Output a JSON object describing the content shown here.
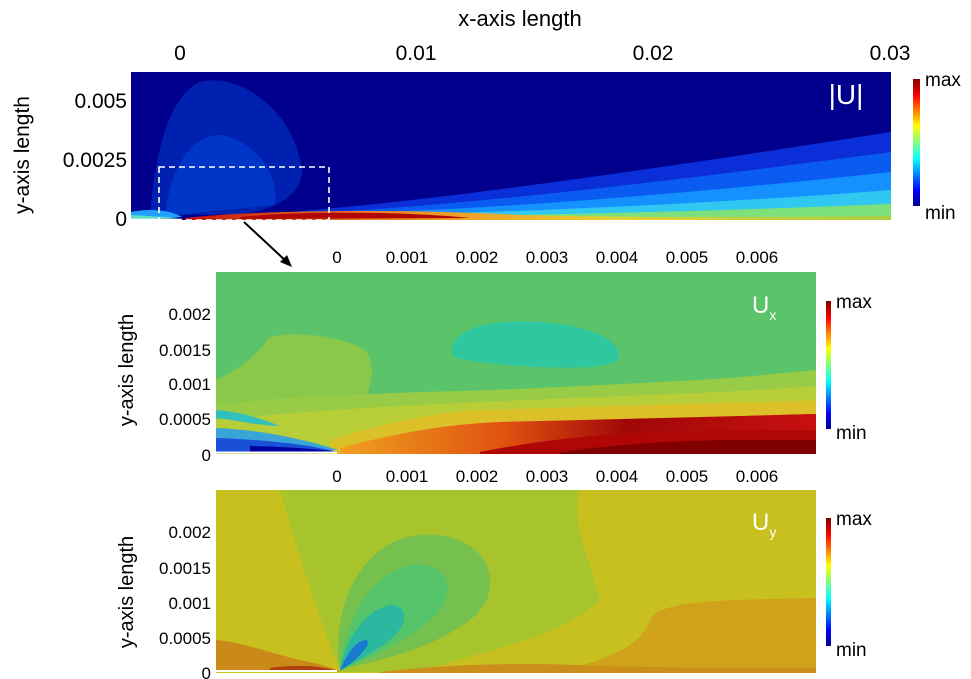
{
  "chart_data": [
    {
      "type": "heatmap",
      "field_label": "|U|",
      "xlabel": "x-axis length",
      "ylabel": "y-axis length",
      "xlim": [
        -0.002,
        0.03
      ],
      "ylim": [
        0,
        0.0062
      ],
      "x_ticks": [
        "0",
        "0.01",
        "0.02",
        "0.03"
      ],
      "x_tick_values": [
        0,
        0.01,
        0.02,
        0.03
      ],
      "y_ticks": [
        "0.005",
        "0.0025",
        "0"
      ],
      "y_tick_values": [
        0.005,
        0.0025,
        0
      ],
      "colorbar": {
        "max_label": "max",
        "min_label": "min"
      },
      "zoom_region": {
        "x": [
          -0.0009,
          0.0063
        ],
        "y": [
          0,
          0.0023
        ]
      }
    },
    {
      "type": "heatmap",
      "field_label": "U",
      "field_subscript": "x",
      "ylabel": "y-axis length",
      "xlim": [
        -0.0017,
        0.0068
      ],
      "ylim": [
        0,
        0.0024
      ],
      "x_ticks": [
        "0",
        "0.001",
        "0.002",
        "0.003",
        "0.004",
        "0.005",
        "0.006"
      ],
      "x_tick_values": [
        0,
        0.001,
        0.002,
        0.003,
        0.004,
        0.005,
        0.006
      ],
      "y_ticks": [
        "0.002",
        "0.0015",
        "0.001",
        "0.0005",
        "0"
      ],
      "y_tick_values": [
        0.002,
        0.0015,
        0.001,
        0.0005,
        0
      ],
      "colorbar": {
        "max_label": "max",
        "min_label": "min"
      }
    },
    {
      "type": "heatmap",
      "field_label": "U",
      "field_subscript": "y",
      "ylabel": "y-axis length",
      "xlim": [
        -0.0017,
        0.0068
      ],
      "ylim": [
        0,
        0.0024
      ],
      "x_ticks": [
        "0",
        "0.001",
        "0.002",
        "0.003",
        "0.004",
        "0.005",
        "0.006"
      ],
      "x_tick_values": [
        0,
        0.001,
        0.002,
        0.003,
        0.004,
        0.005,
        0.006
      ],
      "y_ticks": [
        "0.002",
        "0.0015",
        "0.001",
        "0.0005",
        "0"
      ],
      "y_tick_values": [
        0.002,
        0.0015,
        0.001,
        0.0005,
        0
      ],
      "colorbar": {
        "max_label": "max",
        "min_label": "min"
      }
    }
  ],
  "colors": {
    "jet_min": "#00008f",
    "jet_max": "#800000",
    "ux_background": "#5bc46a",
    "uy_background": "#c7c01e"
  }
}
